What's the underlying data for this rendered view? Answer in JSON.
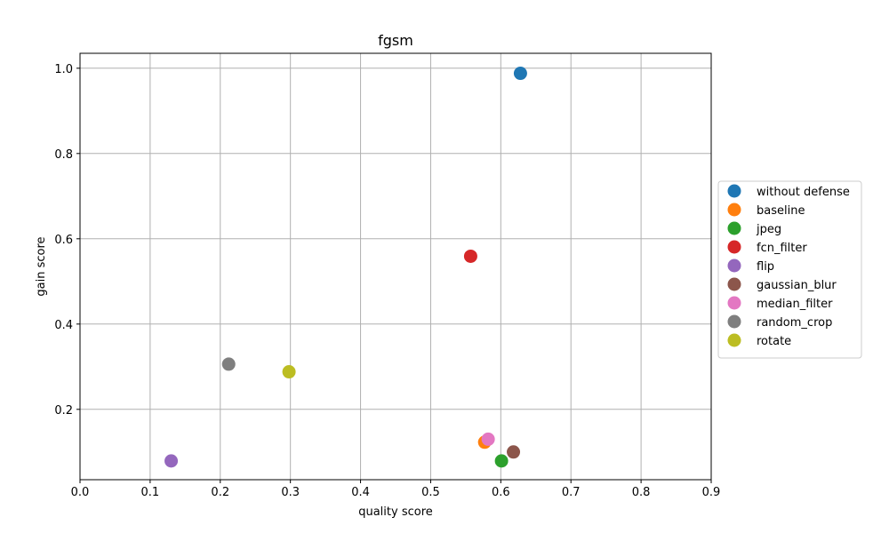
{
  "chart_data": {
    "type": "scatter",
    "title": "fgsm",
    "xlabel": "quality score",
    "ylabel": "gain score",
    "xlim": [
      0.0,
      0.9
    ],
    "ylim": [
      0.035,
      1.035
    ],
    "xticks": [
      0.0,
      0.1,
      0.2,
      0.3,
      0.4,
      0.5,
      0.6,
      0.7,
      0.8,
      0.9
    ],
    "xtick_labels": [
      "0.0",
      "0.1",
      "0.2",
      "0.3",
      "0.4",
      "0.5",
      "0.6",
      "0.7",
      "0.8",
      "0.9"
    ],
    "yticks": [
      0.2,
      0.4,
      0.6,
      0.8,
      1.0
    ],
    "ytick_labels": [
      "0.2",
      "0.4",
      "0.6",
      "0.8",
      "1.0"
    ],
    "grid": true,
    "legend_position": "right, outside plot area",
    "series": [
      {
        "name": "without defense",
        "color": "#1f77b4",
        "x": 0.628,
        "y": 0.988
      },
      {
        "name": "baseline",
        "color": "#ff7f0e",
        "x": 0.577,
        "y": 0.123
      },
      {
        "name": "jpeg",
        "color": "#2ca02c",
        "x": 0.601,
        "y": 0.079
      },
      {
        "name": "fcn_filter",
        "color": "#d62728",
        "x": 0.557,
        "y": 0.559
      },
      {
        "name": "flip",
        "color": "#9467bd",
        "x": 0.13,
        "y": 0.079
      },
      {
        "name": "gaussian_blur",
        "color": "#8c564b",
        "x": 0.618,
        "y": 0.1
      },
      {
        "name": "median_filter",
        "color": "#e377c2",
        "x": 0.582,
        "y": 0.13
      },
      {
        "name": "random_crop",
        "color": "#7f7f7f",
        "x": 0.212,
        "y": 0.306
      },
      {
        "name": "rotate",
        "color": "#bcbd22",
        "x": 0.298,
        "y": 0.288
      }
    ]
  }
}
